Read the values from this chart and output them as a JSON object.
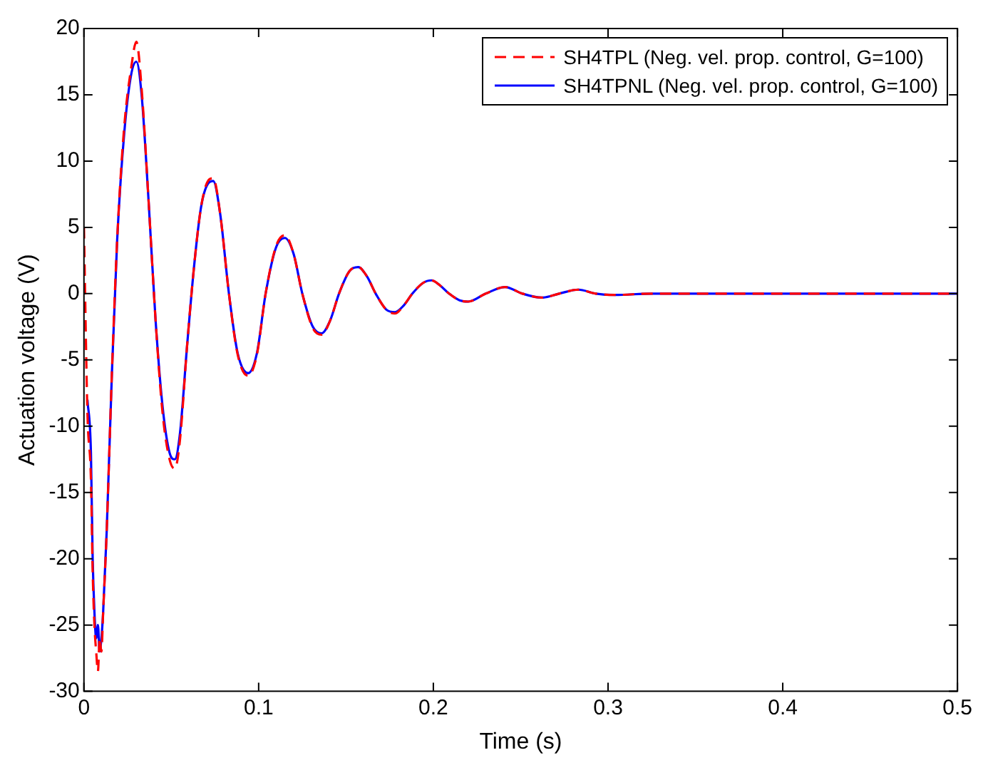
{
  "chart_data": {
    "type": "line",
    "xlabel": "Time (s)",
    "ylabel": "Actuation voltage (V)",
    "x": [
      0,
      0.002,
      0.004,
      0.005,
      0.006,
      0.007,
      0.008,
      0.009,
      0.01,
      0.011,
      0.013,
      0.016,
      0.019,
      0.023,
      0.027,
      0.03,
      0.033,
      0.037,
      0.041,
      0.045,
      0.049,
      0.052,
      0.055,
      0.059,
      0.063,
      0.067,
      0.071,
      0.074,
      0.078,
      0.083,
      0.088,
      0.094,
      0.099,
      0.104,
      0.11,
      0.115,
      0.12,
      0.125,
      0.131,
      0.136,
      0.141,
      0.146,
      0.152,
      0.157,
      0.162,
      0.167,
      0.173,
      0.178,
      0.183,
      0.188,
      0.194,
      0.199,
      0.204,
      0.209,
      0.215,
      0.22,
      0.23,
      0.241,
      0.251,
      0.262,
      0.272,
      0.283,
      0.293,
      0.304,
      0.325,
      0.35,
      0.4,
      0.45,
      0.5
    ],
    "series": [
      {
        "name": "SH4TPL (Neg. vel. prop. control, G=100)",
        "color": "#ff0000",
        "line_style": "dashed",
        "values": [
          5,
          -9,
          -14,
          -21,
          -25,
          -27,
          -28.5,
          -26,
          -27,
          -24,
          -18,
          -6,
          4,
          12.5,
          17,
          19,
          15.5,
          7,
          -2,
          -9,
          -12.5,
          -13.2,
          -11,
          -4,
          2,
          6.5,
          8.5,
          8.7,
          6,
          0,
          -4.6,
          -6.2,
          -4.6,
          0,
          3.6,
          4.4,
          3,
          0,
          -2.6,
          -3.1,
          -2,
          0,
          1.7,
          2,
          1.3,
          0,
          -1.2,
          -1.5,
          -0.9,
          0,
          0.8,
          1,
          0.6,
          0,
          -0.5,
          -0.6,
          0,
          0.5,
          0,
          -0.3,
          0,
          0.3,
          0,
          -0.1,
          0,
          0,
          0,
          0,
          0
        ]
      },
      {
        "name": "SH4TPNL (Neg. vel. prop. control, G=100)",
        "color": "#0000ff",
        "line_style": "solid",
        "values": [
          null,
          -8,
          -12,
          -20,
          -24,
          -26,
          -25,
          -27,
          -26,
          -24,
          -18,
          -6,
          4,
          12,
          16.5,
          17.5,
          15,
          7,
          -2,
          -8.5,
          -12,
          -12.5,
          -10.5,
          -4,
          2,
          6.5,
          8.3,
          8.5,
          6,
          0,
          -4.5,
          -6,
          -4.5,
          0,
          3.5,
          4.2,
          3,
          0,
          -2.5,
          -3,
          -2,
          0,
          1.7,
          2,
          1.3,
          0,
          -1.2,
          -1.4,
          -0.9,
          0,
          0.8,
          1,
          0.6,
          0,
          -0.5,
          -0.6,
          0,
          0.5,
          0,
          -0.3,
          0,
          0.3,
          0,
          -0.1,
          0,
          0,
          0,
          0,
          0
        ]
      }
    ],
    "xlim": [
      0,
      0.5
    ],
    "xticks": [
      0,
      0.1,
      0.2,
      0.3,
      0.4,
      0.5
    ],
    "ylim": [
      -30,
      20
    ],
    "yticks": [
      -30,
      -25,
      -20,
      -15,
      -10,
      -5,
      0,
      5,
      10,
      15,
      20
    ],
    "grid": false,
    "legend": "top right",
    "marker": "none"
  }
}
